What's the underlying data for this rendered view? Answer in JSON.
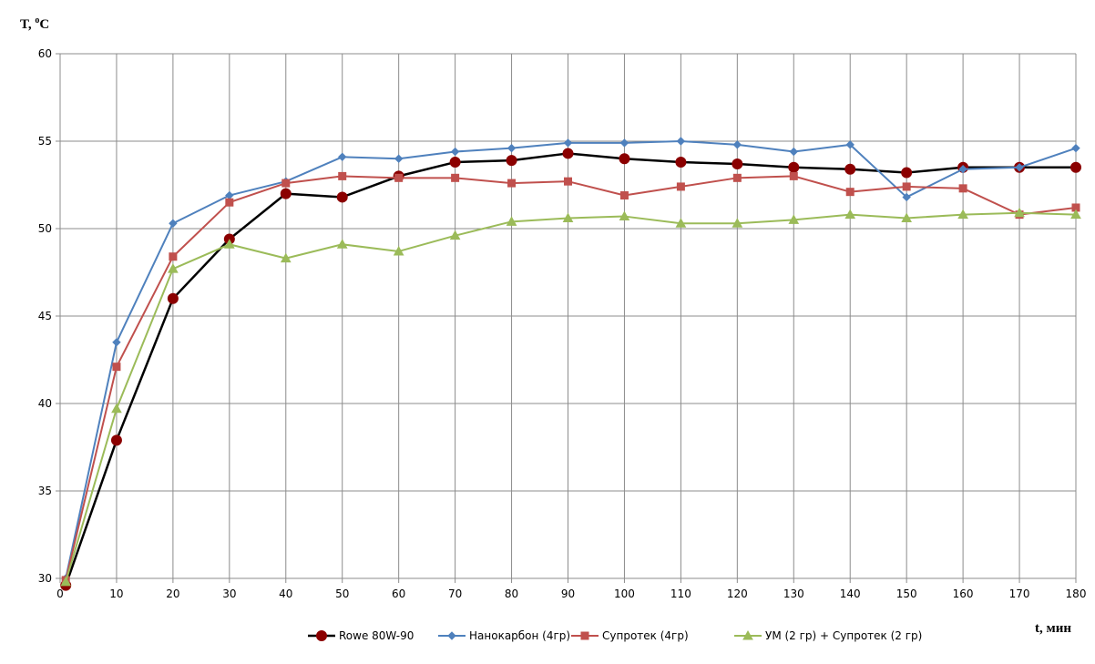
{
  "chart_data": {
    "type": "line",
    "title": "",
    "ylabel_main": "T, ",
    "ylabel_unit_sup": "o",
    "ylabel_unit": "C",
    "xlabel": "t, мин",
    "xlim": [
      0,
      180
    ],
    "ylim": [
      30,
      60
    ],
    "x_ticks": [
      0,
      10,
      20,
      30,
      40,
      50,
      60,
      70,
      80,
      90,
      100,
      110,
      120,
      130,
      140,
      150,
      160,
      170,
      180
    ],
    "y_ticks": [
      30,
      35,
      40,
      45,
      50,
      55,
      60
    ],
    "grid": true,
    "legend_position": "bottom",
    "series": [
      {
        "name": "Rowe 80W-90",
        "color": "#000000",
        "marker": "circle",
        "marker_color": "#8B0000",
        "x": [
          1,
          10,
          20,
          30,
          40,
          50,
          60,
          70,
          80,
          90,
          100,
          110,
          120,
          130,
          140,
          150,
          160,
          170,
          180
        ],
        "values": [
          29.6,
          37.9,
          46.0,
          49.4,
          52.0,
          51.8,
          53.0,
          53.8,
          53.9,
          54.3,
          54.0,
          53.8,
          53.7,
          53.5,
          53.4,
          53.2,
          53.5,
          53.5,
          53.5
        ]
      },
      {
        "name": "Нанокарбон (4гр)",
        "color": "#4F81BD",
        "marker": "diamond",
        "marker_color": "#4F81BD",
        "x": [
          1,
          10,
          20,
          30,
          40,
          50,
          60,
          70,
          80,
          90,
          100,
          110,
          120,
          130,
          140,
          150,
          160,
          170,
          180
        ],
        "values": [
          30.0,
          43.5,
          50.3,
          51.9,
          52.7,
          54.1,
          54.0,
          54.4,
          54.6,
          54.9,
          54.9,
          55.0,
          54.8,
          54.4,
          54.8,
          51.8,
          53.4,
          53.5,
          54.6
        ]
      },
      {
        "name": "Супротек (4гр)",
        "color": "#C0504D",
        "marker": "square",
        "marker_color": "#C0504D",
        "x": [
          1,
          10,
          20,
          30,
          40,
          50,
          60,
          70,
          80,
          90,
          100,
          110,
          120,
          130,
          140,
          150,
          160,
          170,
          180
        ],
        "values": [
          29.9,
          42.1,
          48.4,
          51.5,
          52.6,
          53.0,
          52.9,
          52.9,
          52.6,
          52.7,
          51.9,
          52.4,
          52.9,
          53.0,
          52.1,
          52.4,
          52.3,
          50.8,
          51.2
        ]
      },
      {
        "name": "УМ (2 гр)  + Супротек (2 гр)",
        "color": "#9BBB59",
        "marker": "triangle",
        "marker_color": "#9BBB59",
        "x": [
          1,
          10,
          20,
          30,
          40,
          50,
          60,
          70,
          80,
          90,
          100,
          110,
          120,
          130,
          140,
          150,
          160,
          170,
          180
        ],
        "values": [
          29.8,
          39.7,
          47.7,
          49.1,
          48.3,
          49.1,
          48.7,
          49.6,
          50.4,
          50.6,
          50.7,
          50.3,
          50.3,
          50.5,
          50.8,
          50.6,
          50.8,
          50.9,
          50.8
        ]
      }
    ]
  }
}
